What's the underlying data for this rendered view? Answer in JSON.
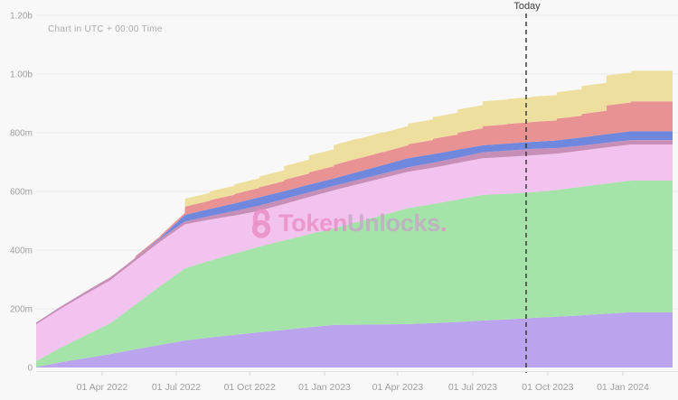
{
  "chart": {
    "note": "Chart in UTC + 00:00 Time",
    "today_label": "Today",
    "watermark": {
      "icon": "unlock-icon",
      "bold": "Token",
      "light": "Unlocks",
      "dot": "."
    }
  },
  "colors": {
    "background": "#f8f8f8",
    "gridline": "#e9e9e9",
    "axis_line": "#e2e2e2",
    "tick_mark": "#d5d5d5",
    "tick_label": "#9e9e9e",
    "note_text": "#acacac",
    "today_line": "#2f2f2f",
    "watermark_pink": "#e88cc6"
  },
  "chart_data": {
    "type": "area",
    "stacked": true,
    "grid": "horizontal",
    "legend": "none",
    "x_axis": {
      "tick_labels": [
        "01 Apr 2022",
        "01 Jul 2022",
        "01 Oct 2022",
        "01 Jan 2023",
        "01 Apr 2023",
        "01 Jul 2023",
        "01 Oct 2023",
        "01 Jan 2024"
      ],
      "tick_month_offsets": [
        2.66,
        5.65,
        8.61,
        11.63,
        14.58,
        17.61,
        20.63,
        23.66
      ]
    },
    "y_axis": {
      "tick_labels": [
        "0",
        "200m",
        "400m",
        "600m",
        "800m",
        "1.00b",
        "1.20b"
      ],
      "tick_values": [
        0,
        200,
        400,
        600,
        800,
        1000,
        1200
      ],
      "unit": "tokens (millions)",
      "ylim": [
        0,
        1200
      ]
    },
    "today": {
      "label": "Today",
      "month_offset": 19.76
    },
    "months": [
      "2022-01",
      "2022-02",
      "2022-03",
      "2022-04",
      "2022-05",
      "2022-06",
      "2022-07",
      "2022-08",
      "2022-09",
      "2022-10",
      "2022-11",
      "2022-12",
      "2023-01",
      "2023-02",
      "2023-03",
      "2023-04",
      "2023-05",
      "2023-06",
      "2023-07",
      "2023-08",
      "2023-09",
      "2023-10",
      "2023-11",
      "2023-12",
      "2024-01",
      "2024-02"
    ],
    "values_unit": "millions",
    "series": [
      {
        "name": "purple",
        "color": "#b095ec",
        "mode": "linear",
        "values": [
          2,
          18,
          32,
          46,
          62,
          77,
          92,
          102,
          111,
          120,
          128,
          137,
          145,
          146,
          147,
          148,
          151,
          155,
          160,
          164,
          169,
          173,
          178,
          183,
          188,
          188
        ]
      },
      {
        "name": "green",
        "color": "#95e09a",
        "mode": "linear",
        "values": [
          20,
          50,
          78,
          105,
          152,
          200,
          246,
          262,
          277,
          292,
          305,
          317,
          329,
          351,
          373,
          395,
          406,
          417,
          428,
          428,
          428,
          432,
          438,
          444,
          449,
          449
        ]
      },
      {
        "name": "pink",
        "color": "#f1baec",
        "mode": "linear",
        "values": [
          125,
          133,
          140,
          147,
          150,
          152,
          150,
          140,
          130,
          122,
          124,
          127,
          130,
          128,
          126,
          124,
          124,
          125,
          125,
          126,
          126,
          124,
          123,
          123,
          123,
          123
        ]
      },
      {
        "name": "rose",
        "color": "#be7cad",
        "mode": "linear",
        "values": [
          6,
          7,
          9,
          10,
          10,
          10,
          10,
          12,
          15,
          18,
          17,
          16,
          15,
          15,
          15,
          15,
          17,
          18,
          20,
          21,
          22,
          19,
          17,
          16,
          15,
          15
        ]
      },
      {
        "name": "blue",
        "color": "#5773d8",
        "mode": "linear",
        "values": [
          0,
          0,
          0,
          0,
          0,
          3,
          22,
          24,
          26,
          28,
          27,
          26,
          25,
          27,
          29,
          31,
          29,
          27,
          24,
          24,
          24,
          26,
          28,
          29,
          30,
          30
        ]
      },
      {
        "name": "red",
        "color": "#e58082",
        "mode": "step",
        "values": [
          0,
          0,
          0,
          0,
          5,
          7,
          28,
          30,
          32,
          34,
          38,
          42,
          46,
          45,
          44,
          48,
          52,
          58,
          65,
          67,
          68,
          74,
          80,
          98,
          102,
          102
        ]
      },
      {
        "name": "yellow",
        "color": "#eddb8f",
        "mode": "step",
        "values": [
          0,
          0,
          0,
          0,
          0,
          0,
          27,
          30,
          33,
          37,
          47,
          57,
          68,
          67,
          66,
          70,
          74,
          79,
          85,
          85,
          86,
          90,
          95,
          102,
          104,
          104
        ]
      }
    ]
  }
}
